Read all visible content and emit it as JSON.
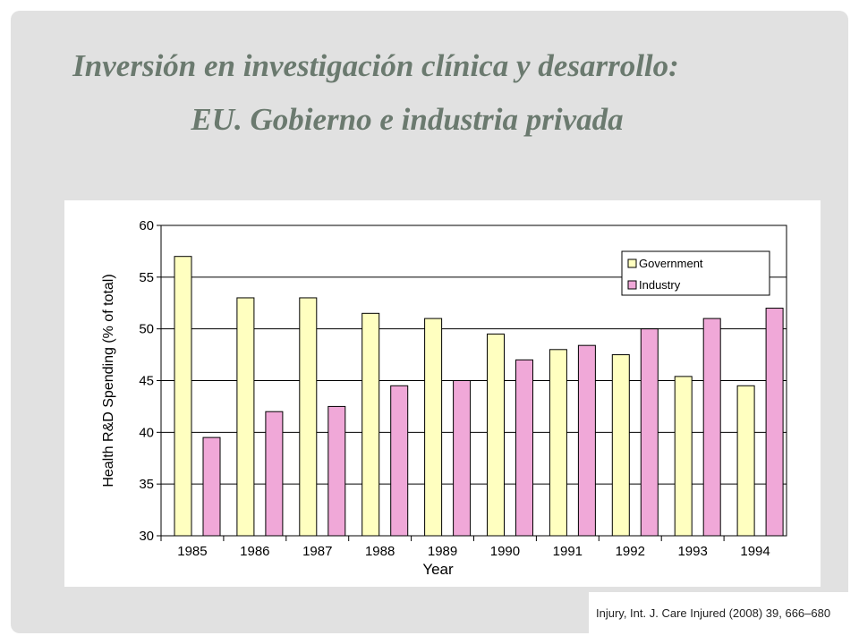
{
  "slide": {
    "title_line1": "Inversión en investigación clínica y desarrollo:",
    "title_line2": "EU. Gobierno e industria privada",
    "citation": "Injury, Int. J. Care Injured (2008) 39, 666–680"
  },
  "chart_data": {
    "type": "bar",
    "categories": [
      "1985",
      "1986",
      "1987",
      "1988",
      "1989",
      "1990",
      "1991",
      "1992",
      "1993",
      "1994"
    ],
    "series": [
      {
        "name": "Government",
        "color": "#ffffc0",
        "values": [
          57,
          53,
          53,
          51.5,
          51,
          49.5,
          48,
          47.5,
          45.4,
          44.5
        ]
      },
      {
        "name": "Industry",
        "color": "#f0a8d8",
        "values": [
          39.5,
          42,
          42.5,
          44.5,
          45,
          47,
          48.4,
          50,
          51,
          52
        ]
      }
    ],
    "xlabel": "Year",
    "ylabel": "Health R&D Spending (% of total)",
    "ylim": [
      30,
      60
    ],
    "yticks": [
      "30",
      "35",
      "40",
      "45",
      "50",
      "55",
      "60"
    ],
    "grid": true,
    "legend_position": "top-right"
  }
}
